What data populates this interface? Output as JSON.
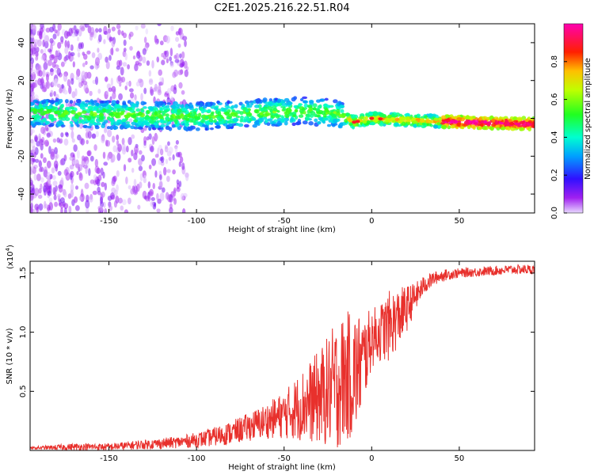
{
  "title": "C2E1.2025.216.22.51.R04",
  "colors": {
    "snr_line": "#e8302c",
    "axis": "#000000"
  },
  "chart_data": [
    {
      "type": "heatmap",
      "xlabel": "Height of straight line (km)",
      "ylabel": "Frequency (Hz)",
      "xlim": [
        -195,
        93
      ],
      "ylim": [
        -50,
        50
      ],
      "x_ticks": [
        -150,
        -100,
        -50,
        0,
        50
      ],
      "y_ticks": [
        -40,
        -20,
        0,
        20,
        40
      ],
      "colorbar": {
        "label": "Normalized spectral amplitude",
        "range": [
          0,
          1
        ],
        "ticks": [
          "0.0",
          "0.2",
          "0.4",
          "0.6",
          "0.8"
        ],
        "colormap": "rainbow (purple-blue-cyan-green-yellow-red-magenta)"
      },
      "ridge": {
        "x": [
          -195,
          -150,
          -100,
          -60,
          -40,
          -20,
          -10,
          0,
          20,
          50,
          93
        ],
        "frequency": [
          3,
          2,
          1,
          3,
          4,
          3,
          -2,
          0,
          -1,
          -2,
          -3
        ]
      }
    },
    {
      "type": "line",
      "xlabel": "Height of straight line (km)",
      "ylabel": "SNR (10 * v/v)",
      "y_multiplier": "(x10",
      "y_exponent": "4",
      "xlim": [
        -195,
        93
      ],
      "ylim": [
        0,
        1.6
      ],
      "x_ticks": [
        -150,
        -100,
        -50,
        0,
        50
      ],
      "y_ticks": [
        0.5,
        1.0,
        1.5
      ],
      "series": [
        {
          "x": [
            -195,
            -170,
            -150,
            -130,
            -110,
            -95,
            -80,
            -70,
            -60,
            -50,
            -40,
            -30,
            -20,
            -15,
            -10,
            -5,
            0,
            5,
            10,
            15,
            20,
            25,
            30,
            35,
            40,
            50,
            60,
            70,
            80,
            93
          ],
          "y": [
            0.02,
            0.03,
            0.03,
            0.05,
            0.07,
            0.1,
            0.15,
            0.2,
            0.25,
            0.3,
            0.38,
            0.45,
            0.55,
            0.62,
            0.65,
            0.75,
            0.95,
            1.0,
            1.05,
            1.12,
            1.2,
            1.3,
            1.4,
            1.45,
            1.48,
            1.5,
            1.51,
            1.52,
            1.53,
            1.53
          ],
          "spread": [
            0.01,
            0.03,
            0.03,
            0.04,
            0.05,
            0.07,
            0.1,
            0.12,
            0.15,
            0.2,
            0.3,
            0.4,
            0.55,
            0.55,
            0.55,
            0.4,
            0.25,
            0.25,
            0.3,
            0.25,
            0.2,
            0.12,
            0.08,
            0.06,
            0.05,
            0.04,
            0.04,
            0.04,
            0.04,
            0.04
          ]
        }
      ]
    }
  ]
}
